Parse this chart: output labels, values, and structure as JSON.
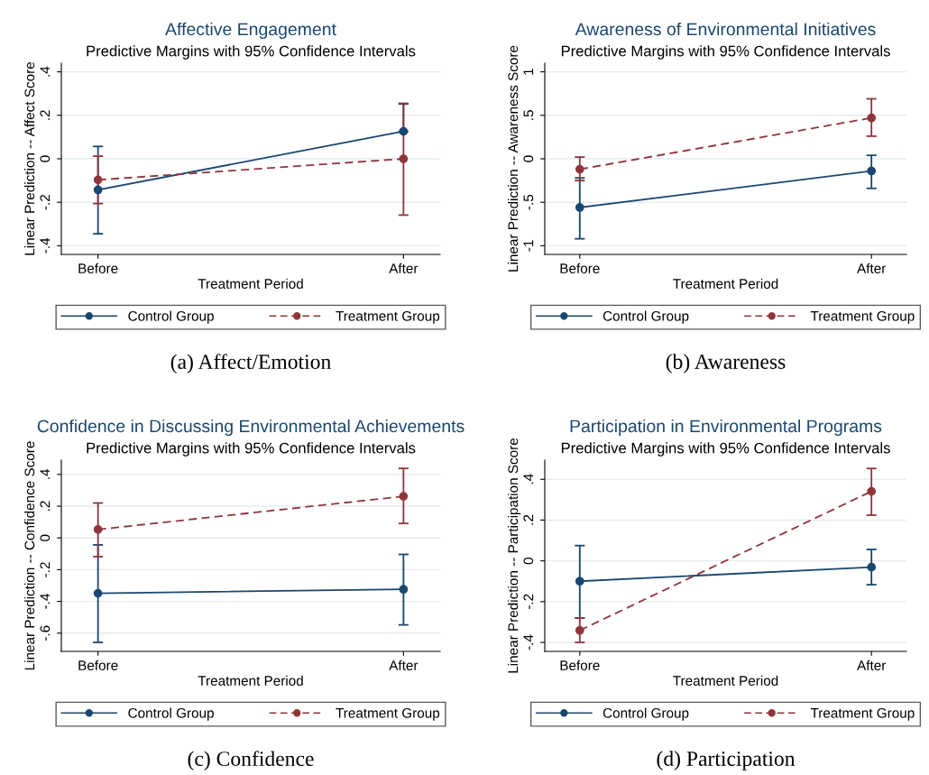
{
  "chart_data": [
    {
      "type": "line",
      "title": "Affective Engagement",
      "subtitle": "Predictive Margins with 95% Confidence Intervals",
      "xlabel": "Treatment Period",
      "ylabel": "Linear Prediction -- Affect Score",
      "categories": [
        "Before",
        "After"
      ],
      "ylim": [
        -0.44,
        0.44
      ],
      "yticks": [
        {
          "value": -0.4,
          "label": "-.4"
        },
        {
          "value": -0.2,
          "label": "-.2"
        },
        0,
        {
          "value": 0.2,
          "label": ".2"
        },
        {
          "value": 0.4,
          "label": ".4"
        }
      ],
      "grid": "y",
      "legend": "bottom",
      "marker": "circle",
      "annotations": [
        "(a) Affect/Emotion"
      ],
      "series": [
        {
          "name": "Control Group",
          "color": "#1a476f",
          "line_style": "solid",
          "values": [
            -0.143,
            0.126
          ],
          "errors": [
            [
              -0.345,
              0.057
            ],
            [
              0.126,
              0.252
            ]
          ]
        },
        {
          "name": "Treatment Group",
          "color": "#90353b",
          "line_style": "dashed",
          "values": [
            -0.097,
            0.0
          ],
          "errors": [
            [
              -0.206,
              0.012
            ],
            [
              -0.259,
              0.255
            ]
          ]
        }
      ]
    },
    {
      "type": "line",
      "title": "Awareness of Environmental Initiatives",
      "subtitle": "Predictive Margins with 95% Confidence Intervals",
      "xlabel": "Treatment Period",
      "ylabel": "Linear Prediction -- Awareness Score",
      "categories": [
        "Before",
        "After"
      ],
      "ylim": [
        -1.1,
        1.1
      ],
      "yticks": [
        -1,
        {
          "value": -0.5,
          "label": "-.5"
        },
        0,
        {
          "value": 0.5,
          "label": ".5"
        },
        1
      ],
      "grid": "y",
      "legend": "bottom",
      "marker": "circle",
      "annotations": [
        "(b) Awareness"
      ],
      "series": [
        {
          "name": "Control Group",
          "color": "#1a476f",
          "line_style": "solid",
          "values": [
            -0.56,
            -0.14
          ],
          "errors": [
            [
              -0.92,
              -0.22
            ],
            [
              -0.34,
              0.04
            ]
          ]
        },
        {
          "name": "Treatment Group",
          "color": "#90353b",
          "line_style": "dashed",
          "values": [
            -0.12,
            0.47
          ],
          "errors": [
            [
              -0.25,
              0.02
            ],
            [
              0.26,
              0.69
            ]
          ]
        }
      ]
    },
    {
      "type": "line",
      "title": "Confidence in Discussing Environmental Achievements",
      "subtitle": "Predictive Margins with 95% Confidence Intervals",
      "xlabel": "Treatment Period",
      "ylabel": "Linear Prediction -- Confidence Score",
      "categories": [
        "Before",
        "After"
      ],
      "ylim": [
        -0.715,
        0.49
      ],
      "yticks": [
        {
          "value": -0.6,
          "label": "-.6"
        },
        {
          "value": -0.4,
          "label": "-.4"
        },
        {
          "value": -0.2,
          "label": "-.2"
        },
        0,
        {
          "value": 0.2,
          "label": ".2"
        },
        {
          "value": 0.4,
          "label": ".4"
        }
      ],
      "grid": "y",
      "legend": "bottom",
      "marker": "circle",
      "annotations": [
        "(c) Confidence"
      ],
      "series": [
        {
          "name": "Control Group",
          "color": "#1a476f",
          "line_style": "solid",
          "values": [
            -0.349,
            -0.324
          ],
          "errors": [
            [
              -0.658,
              -0.044
            ],
            [
              -0.548,
              -0.104
            ]
          ]
        },
        {
          "name": "Treatment Group",
          "color": "#90353b",
          "line_style": "dashed",
          "values": [
            0.053,
            0.262
          ],
          "errors": [
            [
              -0.118,
              0.22
            ],
            [
              0.091,
              0.438
            ]
          ]
        }
      ]
    },
    {
      "type": "line",
      "title": "Participation in Environmental Programs",
      "subtitle": "Predictive Margins with 95% Confidence Intervals",
      "xlabel": "Treatment Period",
      "ylabel": "Linear Prediction -- Participation Score",
      "categories": [
        "Before",
        "After"
      ],
      "ylim": [
        -0.444,
        0.494
      ],
      "yticks": [
        {
          "value": -0.4,
          "label": "-.4"
        },
        {
          "value": -0.2,
          "label": "-.2"
        },
        0,
        {
          "value": 0.2,
          "label": ".2"
        },
        {
          "value": 0.4,
          "label": ".4"
        }
      ],
      "grid": "y",
      "legend": "bottom",
      "marker": "circle",
      "annotations": [
        "(d) Participation"
      ],
      "series": [
        {
          "name": "Control Group",
          "color": "#1a476f",
          "line_style": "solid",
          "values": [
            -0.1,
            -0.031
          ],
          "errors": [
            [
              -0.28,
              0.075
            ],
            [
              -0.117,
              0.056
            ]
          ]
        },
        {
          "name": "Treatment Group",
          "color": "#90353b",
          "line_style": "dashed",
          "values": [
            -0.341,
            0.341
          ],
          "errors": [
            [
              -0.4,
              -0.28
            ],
            [
              0.224,
              0.453
            ]
          ]
        }
      ]
    }
  ]
}
